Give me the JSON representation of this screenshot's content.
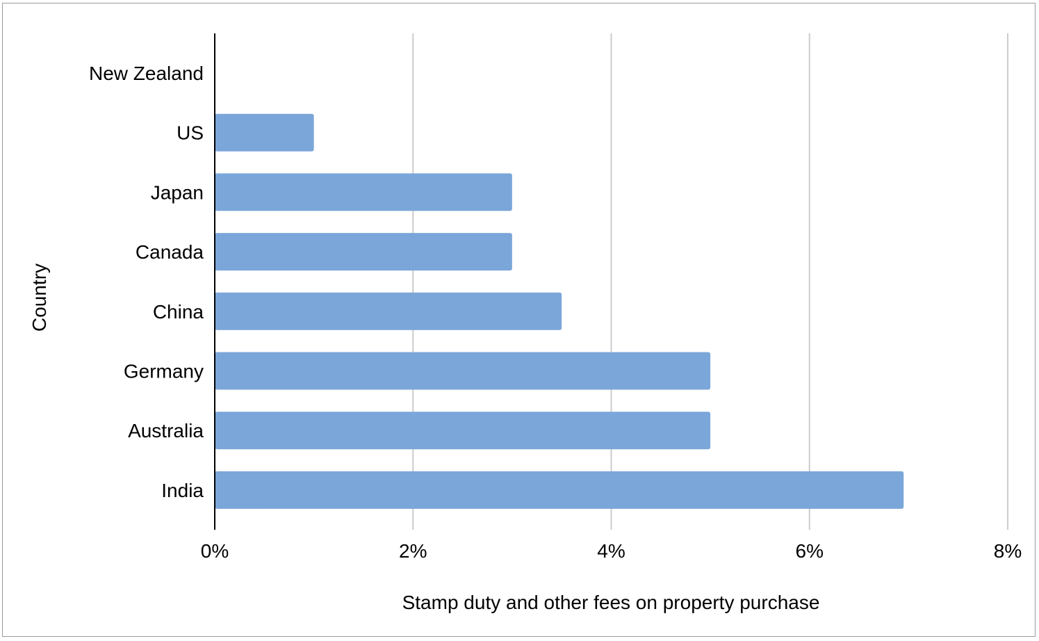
{
  "chart_data": {
    "type": "bar",
    "orientation": "horizontal",
    "categories": [
      "New Zealand",
      "US",
      "Japan",
      "Canada",
      "China",
      "Germany",
      "Australia",
      "India"
    ],
    "values": [
      0,
      1,
      3,
      3,
      3.5,
      5,
      5,
      6.95
    ],
    "value_unit": "%",
    "xlabel": "Stamp duty and other fees on property purchase",
    "ylabel": "Country",
    "xlim": [
      0,
      8
    ],
    "x_ticks": [
      0,
      2,
      4,
      6,
      8
    ],
    "x_tick_labels": [
      "0%",
      "2%",
      "4%",
      "6%",
      "8%"
    ],
    "grid": "vertical",
    "legend": "none",
    "colors": {
      "bar": "#7ba6d9",
      "grid": "#cccccc",
      "axis": "#000000",
      "frame": "#9a9a9a"
    }
  }
}
